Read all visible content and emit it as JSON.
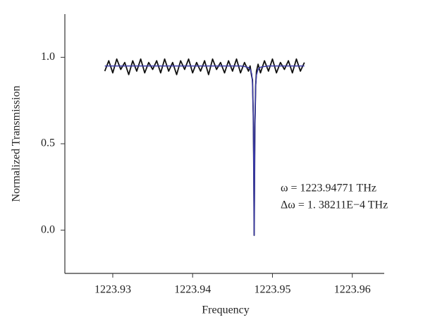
{
  "chart_data": {
    "type": "line",
    "xlabel": "Frequency",
    "ylabel": "Normalized Transmission",
    "annotations": [
      "ω = 1223.94771 THz",
      "Δω = 1. 38211E−4 THz"
    ],
    "x": [
      1223.929,
      1223.9295,
      1223.93,
      1223.9305,
      1223.931,
      1223.9315,
      1223.932,
      1223.9325,
      1223.933,
      1223.9335,
      1223.934,
      1223.9345,
      1223.935,
      1223.9355,
      1223.936,
      1223.9365,
      1223.937,
      1223.9375,
      1223.938,
      1223.9385,
      1223.939,
      1223.9395,
      1223.94,
      1223.9405,
      1223.941,
      1223.9415,
      1223.942,
      1223.9425,
      1223.943,
      1223.9435,
      1223.944,
      1223.9445,
      1223.945,
      1223.9455,
      1223.946,
      1223.9465,
      1223.947,
      1223.9472,
      1223.9474,
      1223.9475,
      1223.9476,
      1223.94765,
      1223.94771,
      1223.94776,
      1223.9478,
      1223.9479,
      1223.948,
      1223.9482,
      1223.9485,
      1223.949,
      1223.9495,
      1223.95,
      1223.9505,
      1223.951,
      1223.9515,
      1223.952,
      1223.9525,
      1223.953,
      1223.9535,
      1223.954
    ],
    "series": [
      {
        "color": "#111111",
        "values": [
          0.92,
          0.98,
          0.91,
          0.99,
          0.93,
          0.97,
          0.9,
          0.98,
          0.92,
          0.99,
          0.91,
          0.97,
          0.93,
          0.98,
          0.91,
          0.99,
          0.92,
          0.97,
          0.9,
          0.98,
          0.93,
          0.99,
          0.91,
          0.97,
          0.92,
          0.98,
          0.9,
          0.99,
          0.93,
          0.97,
          0.91,
          0.98,
          0.92,
          0.99,
          0.91,
          0.97,
          0.92,
          0.95,
          0.89,
          0.87,
          0.66,
          0.4,
          -0.03,
          0.31,
          0.6,
          0.84,
          0.92,
          0.96,
          0.91,
          0.98,
          0.92,
          0.99,
          0.91,
          0.97,
          0.93,
          0.98,
          0.91,
          0.99,
          0.92,
          0.97
        ]
      },
      {
        "color": "#3a3aa8",
        "values": [
          0.95,
          0.95,
          0.95,
          0.95,
          0.95,
          0.95,
          0.95,
          0.95,
          0.95,
          0.95,
          0.95,
          0.95,
          0.95,
          0.95,
          0.95,
          0.95,
          0.95,
          0.95,
          0.95,
          0.95,
          0.95,
          0.95,
          0.95,
          0.95,
          0.95,
          0.95,
          0.95,
          0.95,
          0.95,
          0.95,
          0.95,
          0.95,
          0.95,
          0.95,
          0.95,
          0.947,
          0.941,
          0.932,
          0.905,
          0.852,
          0.673,
          0.392,
          -0.03,
          0.307,
          0.587,
          0.836,
          0.898,
          0.931,
          0.943,
          0.947,
          0.95,
          0.95,
          0.95,
          0.95,
          0.95,
          0.95,
          0.95,
          0.95,
          0.95,
          0.95
        ]
      }
    ],
    "xlim": [
      1223.924,
      1223.964
    ],
    "xticks": [
      1223.93,
      1223.94,
      1223.95,
      1223.96
    ],
    "ylim": [
      -0.25,
      1.25
    ],
    "yticks": [
      {
        "value": 0,
        "label": "0.0"
      },
      0.5,
      {
        "value": 1,
        "label": "1.0"
      }
    ],
    "grid": false
  }
}
